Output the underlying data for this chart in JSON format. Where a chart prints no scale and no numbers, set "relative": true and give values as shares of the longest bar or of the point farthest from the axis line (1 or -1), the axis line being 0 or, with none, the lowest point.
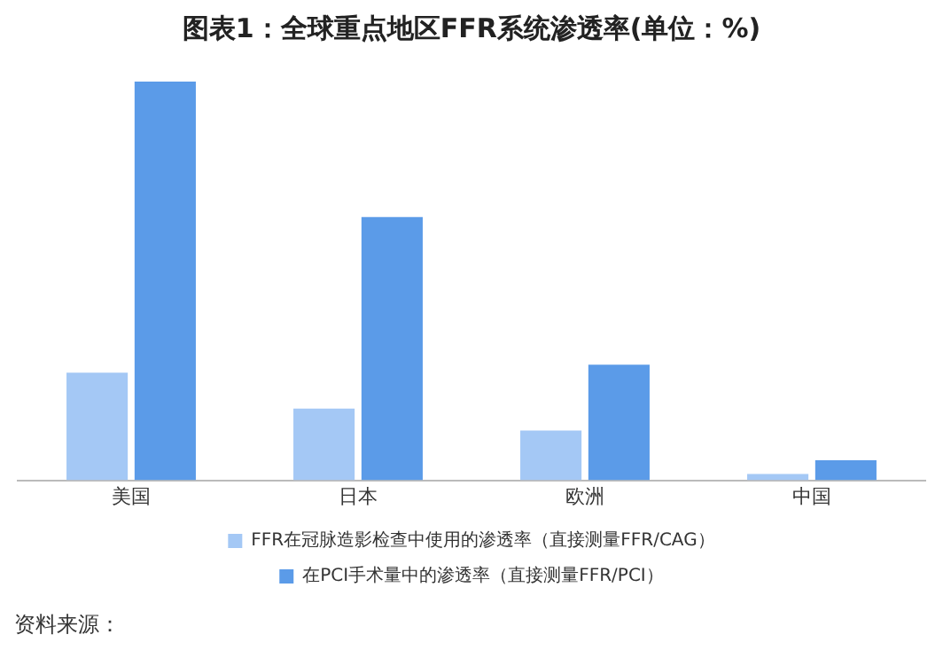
{
  "chart_data": {
    "type": "bar",
    "title": "图表1：全球重点地区FFR系统渗透率(单位：%)",
    "relative": true,
    "categories": [
      "美国",
      "日本",
      "欧洲",
      "中国"
    ],
    "series": [
      {
        "name": "FFR在冠脉造影检查中使用的渗透率（直接测量FFR/CAG）",
        "color": "#a4c8f5",
        "values": [
          0.27,
          0.18,
          0.125,
          0.016
        ]
      },
      {
        "name": "在PCI手术量中的渗透率（直接测量FFR/PCI）",
        "color": "#5b9be8",
        "values": [
          1,
          0.66,
          0.29,
          0.05
        ]
      }
    ],
    "legend": "bottom",
    "grid": false,
    "annotations": [
      "资料来源："
    ]
  }
}
